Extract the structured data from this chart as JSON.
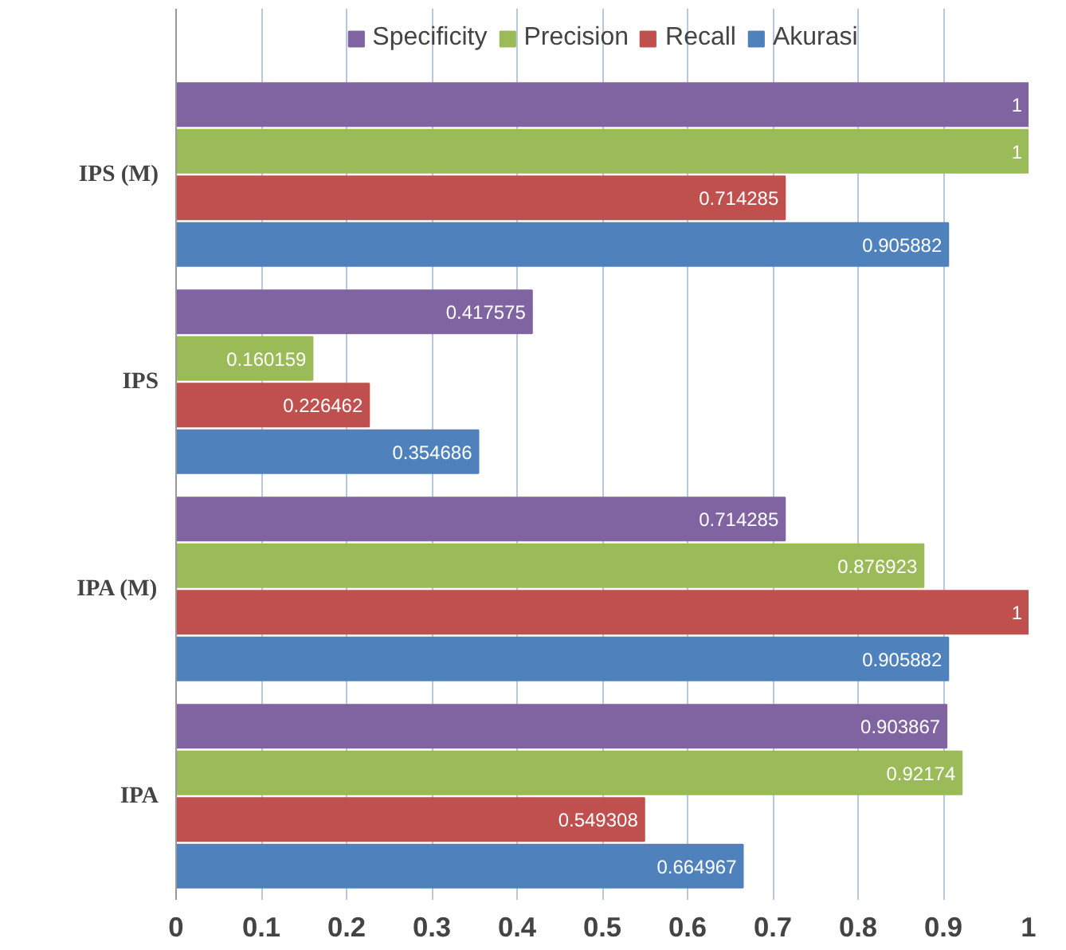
{
  "chart_data": {
    "type": "bar",
    "orientation": "horizontal",
    "categories": [
      "IPS (M)",
      "IPS",
      "IPA (M)",
      "IPA"
    ],
    "series": [
      {
        "name": "Specificity",
        "color": "#8064a2",
        "values": [
          1,
          0.417575,
          0.714285,
          0.903867
        ]
      },
      {
        "name": "Precision",
        "color": "#9bbb59",
        "values": [
          1,
          0.160159,
          0.876923,
          0.92174
        ]
      },
      {
        "name": "Recall",
        "color": "#c0504d",
        "values": [
          0.714285,
          0.226462,
          1,
          0.549308
        ]
      },
      {
        "name": "Akurasi",
        "color": "#4f81bd",
        "values": [
          0.905882,
          0.354686,
          0.905882,
          0.664967
        ]
      }
    ],
    "xlim": [
      0,
      1
    ],
    "xticks": [
      0,
      0.1,
      0.2,
      0.3,
      0.4,
      0.5,
      0.6,
      0.7,
      0.8,
      0.9,
      1
    ],
    "grid": "x",
    "legend": "top",
    "data_labels": true
  }
}
